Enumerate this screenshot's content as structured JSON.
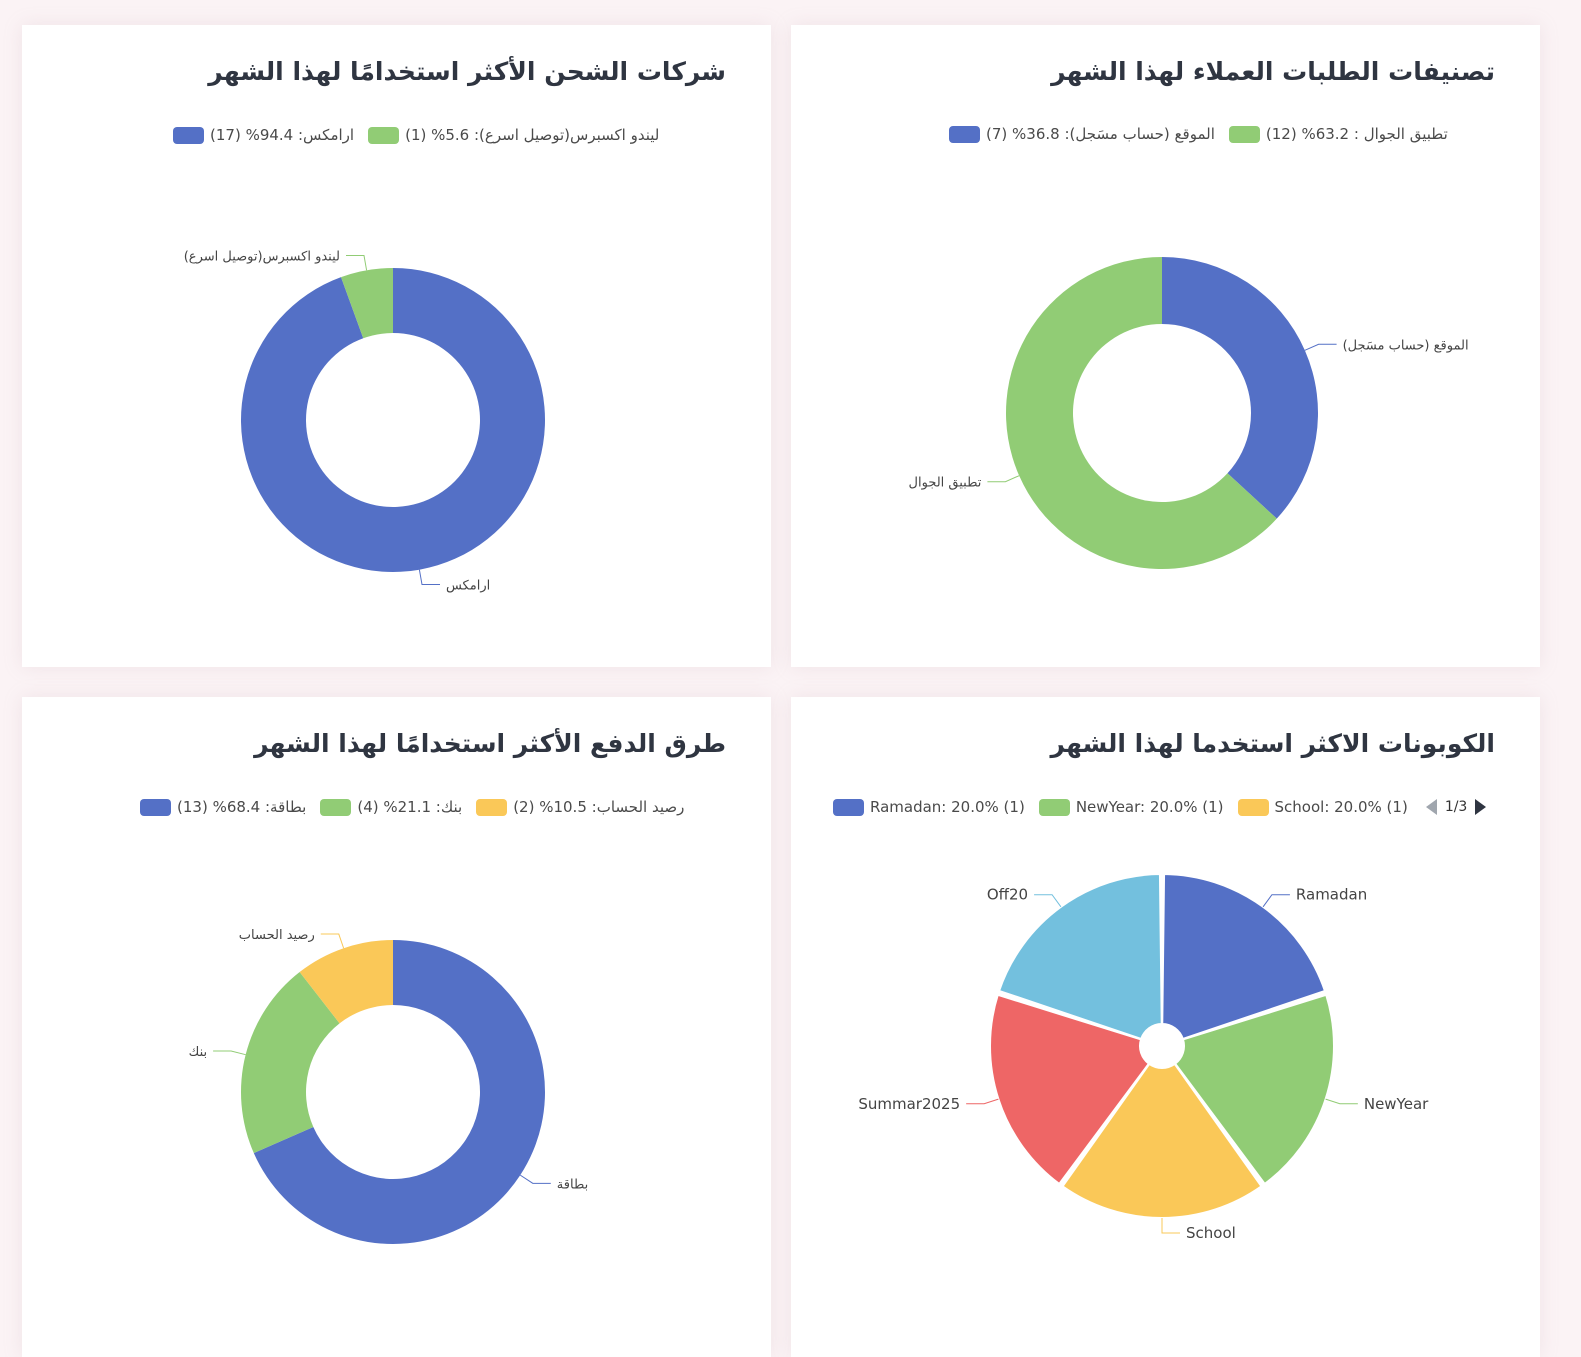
{
  "charts": {
    "shipping": {
      "title": "شركات الشحن الأكثر استخدامًا لهذا الشهر",
      "legend": [
        {
          "text": "ارامكس: 94.4% (17)",
          "color": "#5470c6"
        },
        {
          "text": "ليندو اكسبرس(توصيل اسرع): 5.6% (1)",
          "color": "#91cc75"
        }
      ]
    },
    "channels": {
      "title": "تصنيفات الطلبات العملاء لهذا الشهر",
      "legend": [
        {
          "text": "الموقع (حساب مسَجل): 36.8% (7)",
          "color": "#5470c6"
        },
        {
          "text": "تطبيق الجوال : 63.2% (12)",
          "color": "#91cc75"
        }
      ]
    },
    "payments": {
      "title": "طرق الدفع الأكثر استخدامًا لهذا الشهر",
      "legend": [
        {
          "text": "بطاقة: 68.4% (13)",
          "color": "#5470c6"
        },
        {
          "text": "بنك: 21.1% (4)",
          "color": "#91cc75"
        },
        {
          "text": "رصيد الحساب: 10.5% (2)",
          "color": "#fac858"
        }
      ]
    },
    "coupons": {
      "title": "الكوبونات الاكثر استخدما لهذا الشهر",
      "legend": [
        {
          "text": "Ramadan: 20.0% (1)",
          "color": "#5470c6"
        },
        {
          "text": "NewYear: 20.0% (1)",
          "color": "#91cc75"
        },
        {
          "text": "School: 20.0% (1)",
          "color": "#fac858"
        }
      ],
      "pager": "1/3"
    }
  },
  "chart_data": [
    {
      "type": "pie",
      "variant": "donut",
      "title": "شركات الشحن الأكثر استخدامًا لهذا الشهر",
      "legend_position": "top",
      "categories": [
        "ارامكس",
        "ليندو اكسبرس(توصيل اسرع)"
      ],
      "values": [
        17,
        1
      ],
      "percentages": [
        94.4,
        5.6
      ],
      "colors": [
        "#5470c6",
        "#91cc75"
      ]
    },
    {
      "type": "pie",
      "variant": "donut",
      "title": "تصنيفات الطلبات العملاء لهذا الشهر",
      "legend_position": "top",
      "categories": [
        "الموقع (حساب مسَجل)",
        "تطبيق الجوال"
      ],
      "values": [
        7,
        12
      ],
      "percentages": [
        36.8,
        63.2
      ],
      "colors": [
        "#5470c6",
        "#91cc75"
      ]
    },
    {
      "type": "pie",
      "variant": "donut",
      "title": "طرق الدفع الأكثر استخدامًا لهذا الشهر",
      "legend_position": "top",
      "categories": [
        "بطاقة",
        "بنك",
        "رصيد الحساب"
      ],
      "values": [
        13,
        4,
        2
      ],
      "percentages": [
        68.4,
        21.1,
        10.5
      ],
      "colors": [
        "#5470c6",
        "#91cc75",
        "#fac858"
      ]
    },
    {
      "type": "pie",
      "variant": "rose",
      "title": "الكوبونات الاكثر استخدما لهذا الشهر",
      "legend_position": "top",
      "categories": [
        "Ramadan",
        "NewYear",
        "School",
        "Summar2025",
        "Off20"
      ],
      "values": [
        1,
        1,
        1,
        1,
        1
      ],
      "percentages": [
        20.0,
        20.0,
        20.0,
        20.0,
        20.0
      ],
      "colors": [
        "#5470c6",
        "#91cc75",
        "#fac858",
        "#ee6666",
        "#73c0de"
      ]
    }
  ]
}
